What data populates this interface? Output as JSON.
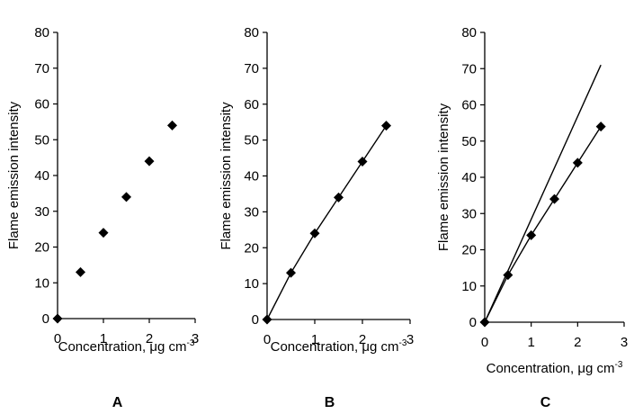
{
  "chart_data": [
    {
      "type": "scatter",
      "panel_label": "A",
      "xlabel": "Concentration, μg cm",
      "xlabel_superscript": "-3",
      "ylabel": "Flame emission intensity",
      "xlim": [
        0,
        3
      ],
      "ylim": [
        0,
        80
      ],
      "xticks": [
        "0",
        "1",
        "2",
        "3"
      ],
      "yticks": [
        "0",
        "10",
        "20",
        "30",
        "40",
        "50",
        "60",
        "70",
        "80"
      ],
      "series": [
        {
          "name": "data",
          "marker": "diamond",
          "connect": false,
          "x": [
            0,
            0.5,
            1.0,
            1.5,
            2.0,
            2.5
          ],
          "y": [
            0,
            13,
            24,
            34,
            44,
            54
          ]
        }
      ]
    },
    {
      "type": "line",
      "panel_label": "B",
      "xlabel": "Concentration, μg cm",
      "xlabel_superscript": "-3",
      "ylabel": "Flame emission intensity",
      "xlim": [
        0,
        3
      ],
      "ylim": [
        0,
        80
      ],
      "xticks": [
        "0",
        "1",
        "2",
        "3"
      ],
      "yticks": [
        "0",
        "10",
        "20",
        "30",
        "40",
        "50",
        "60",
        "70",
        "80"
      ],
      "series": [
        {
          "name": "data",
          "marker": "diamond",
          "connect": true,
          "x": [
            0,
            0.5,
            1.0,
            1.5,
            2.0,
            2.5
          ],
          "y": [
            0,
            13,
            24,
            34,
            44,
            54
          ]
        }
      ]
    },
    {
      "type": "line",
      "panel_label": "C",
      "xlabel": "Concentration, μg cm",
      "xlabel_superscript": "-3",
      "ylabel": "Flame emission intensity",
      "xlim": [
        0,
        3
      ],
      "ylim": [
        0,
        80
      ],
      "xticks": [
        "0",
        "1",
        "2",
        "3"
      ],
      "yticks": [
        "0",
        "10",
        "20",
        "30",
        "40",
        "50",
        "60",
        "70",
        "80"
      ],
      "series": [
        {
          "name": "data",
          "marker": "diamond",
          "connect": true,
          "x": [
            0,
            0.5,
            1.0,
            1.5,
            2.0,
            2.5
          ],
          "y": [
            0,
            13,
            24,
            34,
            44,
            54
          ]
        },
        {
          "name": "linear extrapolation",
          "marker": "none",
          "connect": true,
          "x": [
            0,
            2.5
          ],
          "y": [
            0,
            71
          ]
        }
      ]
    }
  ]
}
